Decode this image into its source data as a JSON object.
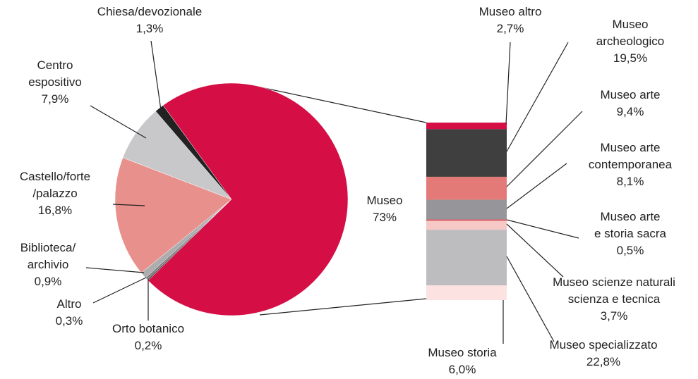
{
  "chart_data": [
    {
      "type": "pie",
      "categories": [
        "Museo",
        "Orto botanico",
        "Altro",
        "Biblioteca/\narchivio",
        "Castello/forte\n/palazzo",
        "Centro\nespositivo",
        "Chiesa/devozionale"
      ],
      "values": [
        73,
        0.2,
        0.3,
        0.9,
        16.8,
        7.9,
        1.3
      ],
      "value_labels": [
        "73%",
        "0,2%",
        "0,3%",
        "0,9%",
        "16,8%",
        "7,9%",
        "1,3%"
      ],
      "colors": [
        "#d50f45",
        "#4a4a4a",
        "#7a7a7a",
        "#adadb0",
        "#e8908c",
        "#c8c8ca",
        "#222222"
      ]
    },
    {
      "type": "stacked-bar",
      "categories": [
        "Museo altro",
        "Museo\narcheologico",
        "Museo arte",
        "Museo arte\ncontemporanea",
        "Museo arte\ne storia sacra",
        "Museo scienze naturali\nscienza e tecnica",
        "Museo specializzato",
        "Museo storia"
      ],
      "values": [
        2.7,
        19.5,
        9.4,
        8.1,
        0.5,
        3.7,
        22.8,
        6.0
      ],
      "value_labels": [
        "2,7%",
        "19,5%",
        "9,4%",
        "8,1%",
        "0,5%",
        "3,7%",
        "22,8%",
        "6,0%"
      ],
      "colors": [
        "#d50f45",
        "#3f3f3f",
        "#e47a78",
        "#96969a",
        "#d9434f",
        "#f6c8c6",
        "#bdbdc0",
        "#fce3e1"
      ]
    }
  ]
}
